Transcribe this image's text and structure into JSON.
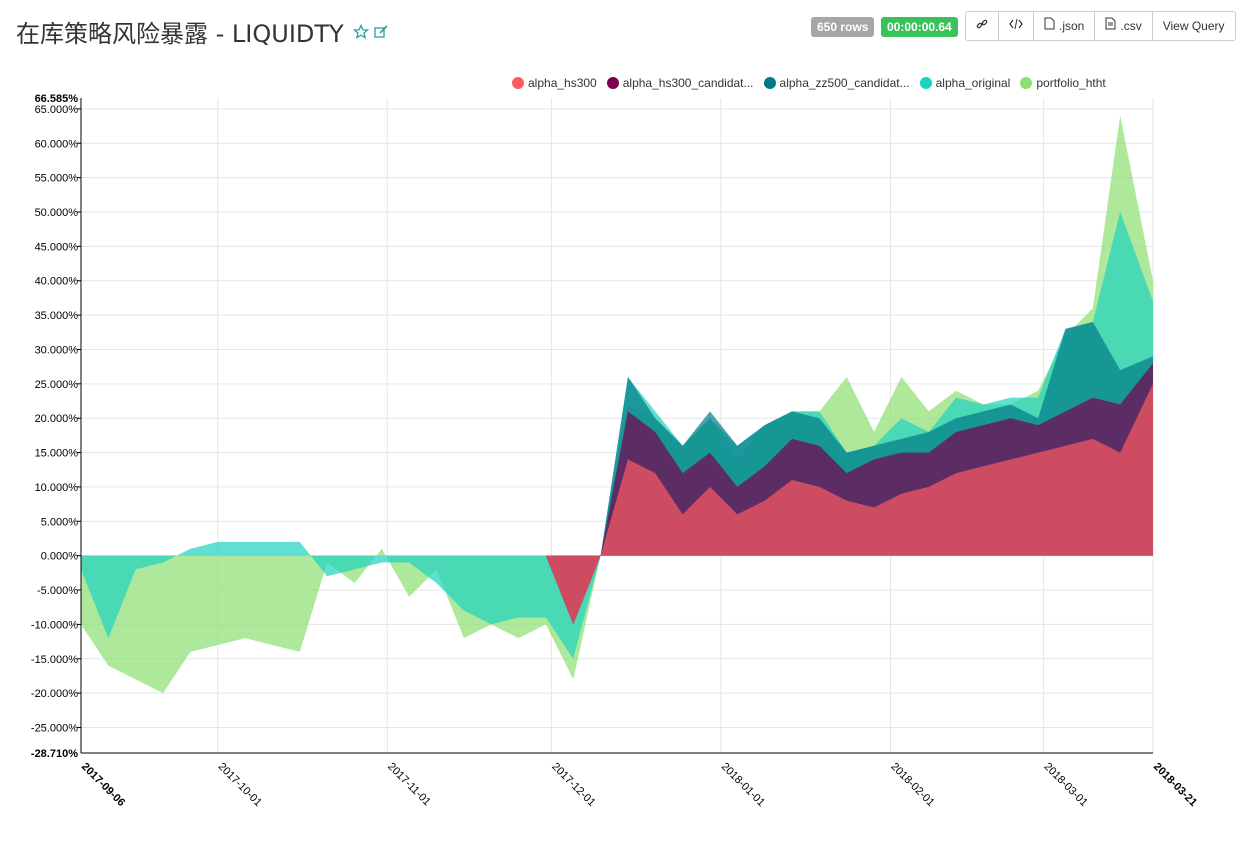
{
  "header": {
    "title": "在库策略风险暴露 - LIQUIDTY",
    "rows_badge": "650 rows",
    "time_badge": "00:00:00.64",
    "buttons": [
      {
        "name": "link-button",
        "icon": "link-icon",
        "label": ""
      },
      {
        "name": "embed-button",
        "icon": "code-icon",
        "label": ""
      },
      {
        "name": "json-button",
        "icon": "file-icon",
        "label": ".json"
      },
      {
        "name": "csv-button",
        "icon": "file-icon",
        "label": ".csv"
      },
      {
        "name": "view-query-button",
        "icon": "",
        "label": "View Query"
      }
    ]
  },
  "colors": {
    "alpha_hs300": "#ff5a5f",
    "alpha_hs300_candidates": "#7b0051",
    "alpha_zz500_candidates": "#007a87",
    "alpha_original": "#1fd1c1",
    "portfolio_htht": "#8ce071"
  },
  "chart_data": {
    "type": "area",
    "title": "",
    "xlabel": "",
    "ylabel": "",
    "ylim": [
      -28.71,
      66.585
    ],
    "y_min_label": "-28.710%",
    "y_max_label": "66.585%",
    "y_ticks": [
      "-25.000%",
      "-20.000%",
      "-15.000%",
      "-10.000%",
      "-5.000%",
      "0.000%",
      "5.000%",
      "10.000%",
      "15.000%",
      "20.000%",
      "25.000%",
      "30.000%",
      "35.000%",
      "40.000%",
      "45.000%",
      "50.000%",
      "55.000%",
      "60.000%",
      "65.000%"
    ],
    "y_tick_values": [
      -25,
      -20,
      -15,
      -10,
      -5,
      0,
      5,
      10,
      15,
      20,
      25,
      30,
      35,
      40,
      45,
      50,
      55,
      60,
      65
    ],
    "x_ticks": [
      "2017-09-06",
      "2017-10-01",
      "2017-11-01",
      "2017-12-01",
      "2018-01-01",
      "2018-02-01",
      "2018-03-01",
      "2018-03-21"
    ],
    "x_tick_days": [
      0,
      25,
      56,
      86,
      117,
      148,
      176,
      196
    ],
    "x_bold_ticks": [
      "2017-09-06",
      "2018-03-21"
    ],
    "x_range_days": [
      0,
      196
    ],
    "grid": true,
    "legend_position": "top-right",
    "x_days": [
      0,
      5,
      10,
      15,
      20,
      25,
      30,
      35,
      40,
      45,
      50,
      55,
      60,
      65,
      70,
      75,
      80,
      85,
      90,
      95,
      100,
      105,
      110,
      115,
      120,
      125,
      130,
      135,
      140,
      145,
      150,
      155,
      160,
      165,
      170,
      175,
      180,
      185,
      190,
      196
    ],
    "legend": [
      "alpha_hs300",
      "alpha_hs300_candidat...",
      "alpha_zz500_candidat...",
      "alpha_original",
      "portfolio_htht"
    ],
    "series": [
      {
        "name": "alpha_hs300",
        "key": "alpha_hs300",
        "values": [
          0,
          0,
          0,
          0,
          0,
          0,
          0,
          0,
          0,
          0,
          0,
          0,
          0,
          0,
          0,
          0,
          0,
          0,
          -10,
          0,
          14,
          12,
          6,
          10,
          6,
          8,
          11,
          10,
          8,
          7,
          9,
          10,
          12,
          13,
          14,
          15,
          16,
          17,
          15,
          25
        ]
      },
      {
        "name": "alpha_hs300_candidat...",
        "key": "alpha_hs300_candidates",
        "values": [
          0,
          0,
          0,
          0,
          0,
          0,
          0,
          0,
          0,
          0,
          0,
          0,
          0,
          0,
          0,
          0,
          0,
          0,
          -10,
          0,
          21,
          18,
          12,
          15,
          10,
          13,
          17,
          16,
          12,
          14,
          15,
          15,
          18,
          19,
          20,
          19,
          21,
          23,
          22,
          28
        ]
      },
      {
        "name": "alpha_zz500_candidat...",
        "key": "alpha_zz500_candidates",
        "values": [
          0,
          0,
          0,
          0,
          0,
          0,
          0,
          0,
          0,
          0,
          0,
          0,
          0,
          0,
          0,
          0,
          0,
          0,
          -10,
          0,
          26,
          20,
          16,
          21,
          16,
          19,
          21,
          20,
          15,
          16,
          17,
          18,
          20,
          21,
          22,
          20,
          33,
          34,
          27,
          29
        ]
      },
      {
        "name": "alpha_original",
        "key": "alpha_original",
        "values": [
          -2,
          -12,
          -2,
          -1,
          1,
          2,
          2,
          2,
          2,
          -3,
          -2,
          -1,
          -1,
          -4,
          -8,
          -10,
          -9,
          -9,
          -15,
          0,
          26,
          21,
          16,
          20,
          16,
          19,
          21,
          21,
          15,
          16,
          20,
          18,
          23,
          22,
          23,
          23,
          33,
          34,
          50,
          37
        ]
      },
      {
        "name": "portfolio_htht",
        "key": "portfolio_htht",
        "values": [
          -10,
          -16,
          -18,
          -20,
          -14,
          -13,
          -12,
          -13,
          -14,
          -1,
          -4,
          1,
          -6,
          -2,
          -12,
          -10,
          -12,
          -10,
          -18,
          0,
          22,
          20,
          16,
          20,
          14,
          19,
          21,
          21,
          26,
          18,
          26,
          21,
          24,
          22,
          22,
          24,
          32,
          36,
          64,
          40
        ]
      }
    ]
  }
}
